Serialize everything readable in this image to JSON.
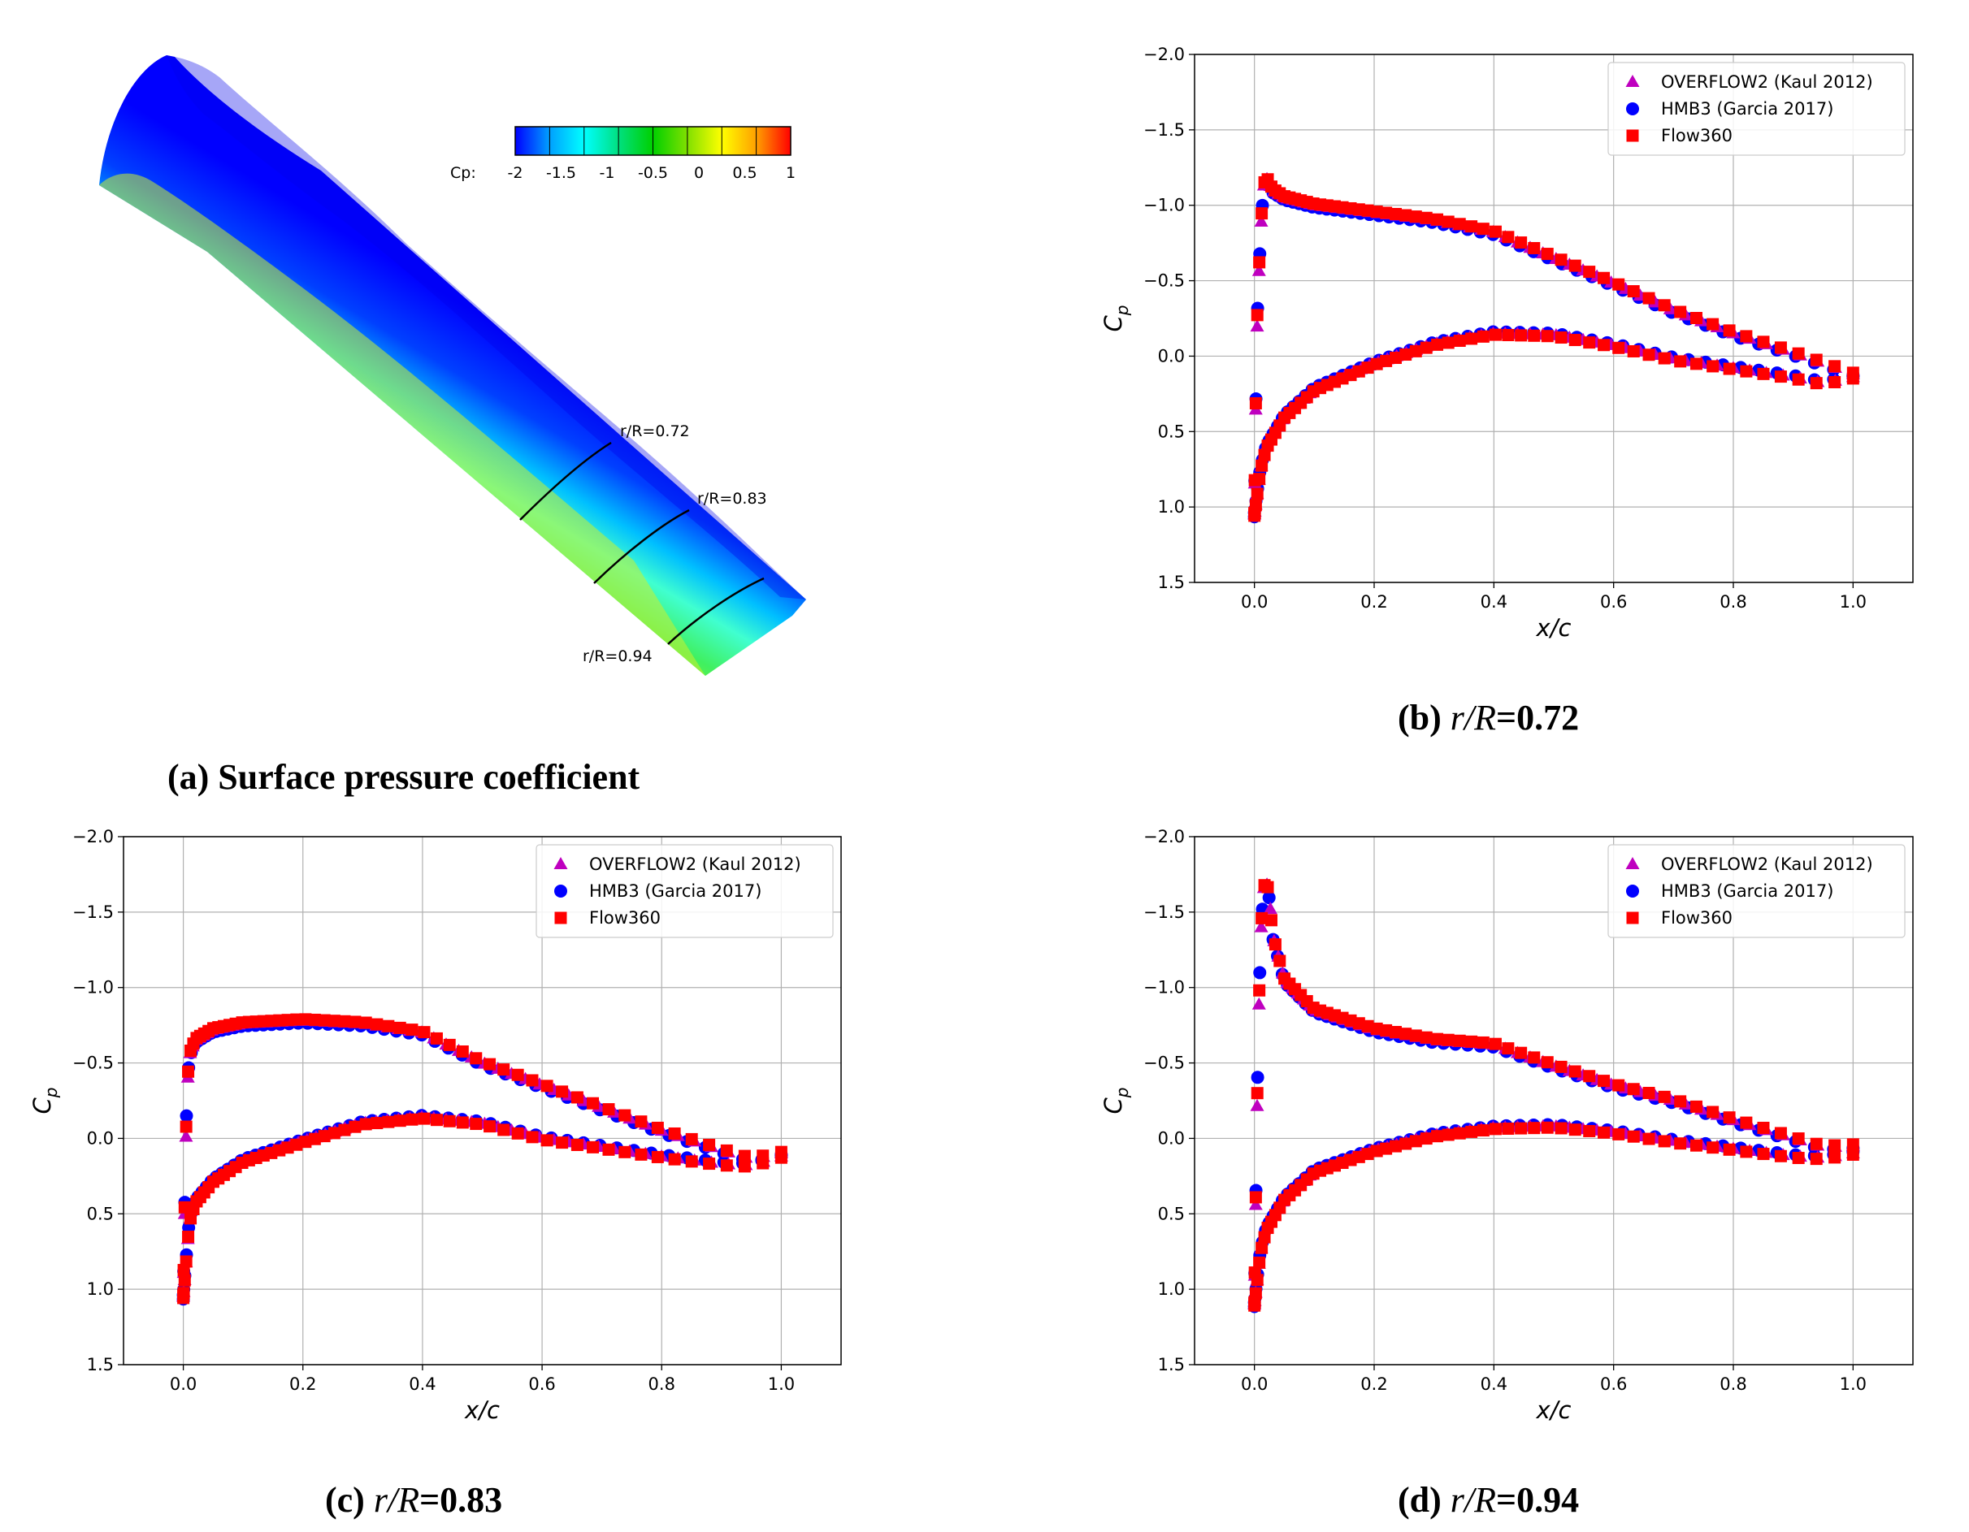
{
  "panel_a": {
    "caption": "(a) Surface pressure coefficient",
    "colorbar": {
      "label": "Cp:",
      "ticks": [
        "-2",
        "-1.5",
        "-1",
        "-0.5",
        "0",
        "0.5",
        "1"
      ],
      "colors": [
        "#0000ff",
        "#00a0ff",
        "#00ffff",
        "#00e080",
        "#00d000",
        "#80e000",
        "#ffff00",
        "#ffa000",
        "#ff0000"
      ]
    },
    "sections": [
      "r/R=0.72",
      "r/R=0.83",
      "r/R=0.94"
    ]
  },
  "legend": {
    "overflow": "OVERFLOW2 (Kaul 2012)",
    "hmb3": "HMB3 (Garcia 2017)",
    "flow360": "Flow360"
  },
  "series_colors": {
    "overflow": "#bf00bf",
    "hmb3": "#0000ff",
    "flow360": "#ff0000"
  },
  "chart_data": [
    {
      "type": "scatter",
      "id": "b",
      "caption_prefix": "(b) ",
      "caption_var": "r/R",
      "caption_value": "=0.72",
      "xlabel": "x/c",
      "ylabel": "Cp",
      "xlim": [
        -0.1,
        1.1
      ],
      "ylim": [
        1.5,
        -2.0
      ],
      "xticks": [
        "0.0",
        "0.2",
        "0.4",
        "0.6",
        "0.8",
        "1.0"
      ],
      "yticks": [
        "−2.0",
        "−1.5",
        "−1.0",
        "−0.5",
        "0.0",
        "0.5",
        "1.0",
        "1.5"
      ],
      "grid": true,
      "legend_position": "top-right",
      "upper_curve": [
        [
          0.0,
          1.05
        ],
        [
          0.002,
          0.4
        ],
        [
          0.005,
          -0.3
        ],
        [
          0.01,
          -0.8
        ],
        [
          0.015,
          -1.12
        ],
        [
          0.02,
          -1.18
        ],
        [
          0.03,
          -1.1
        ],
        [
          0.05,
          -1.05
        ],
        [
          0.1,
          -1.0
        ],
        [
          0.2,
          -0.95
        ],
        [
          0.3,
          -0.9
        ],
        [
          0.4,
          -0.82
        ],
        [
          0.5,
          -0.65
        ],
        [
          0.6,
          -0.48
        ],
        [
          0.7,
          -0.3
        ],
        [
          0.8,
          -0.15
        ],
        [
          0.9,
          -0.02
        ],
        [
          0.95,
          0.05
        ],
        [
          1.0,
          0.12
        ]
      ],
      "lower_curve": [
        [
          0.0,
          1.05
        ],
        [
          0.01,
          0.75
        ],
        [
          0.02,
          0.6
        ],
        [
          0.05,
          0.4
        ],
        [
          0.1,
          0.22
        ],
        [
          0.2,
          0.05
        ],
        [
          0.3,
          -0.08
        ],
        [
          0.4,
          -0.15
        ],
        [
          0.5,
          -0.14
        ],
        [
          0.6,
          -0.07
        ],
        [
          0.7,
          0.02
        ],
        [
          0.8,
          0.08
        ],
        [
          0.9,
          0.14
        ],
        [
          0.95,
          0.18
        ],
        [
          1.0,
          0.14
        ]
      ]
    },
    {
      "type": "scatter",
      "id": "c",
      "caption_prefix": "(c) ",
      "caption_var": "r/R",
      "caption_value": "=0.83",
      "xlabel": "x/c",
      "ylabel": "Cp",
      "xlim": [
        -0.1,
        1.1
      ],
      "ylim": [
        1.5,
        -2.0
      ],
      "xticks": [
        "0.0",
        "0.2",
        "0.4",
        "0.6",
        "0.8",
        "1.0"
      ],
      "yticks": [
        "−2.0",
        "−1.5",
        "−1.0",
        "−0.5",
        "0.0",
        "0.5",
        "1.0",
        "1.5"
      ],
      "grid": true,
      "legend_position": "top-right",
      "upper_curve": [
        [
          0.0,
          1.05
        ],
        [
          0.003,
          0.3
        ],
        [
          0.006,
          -0.3
        ],
        [
          0.01,
          -0.55
        ],
        [
          0.02,
          -0.65
        ],
        [
          0.05,
          -0.72
        ],
        [
          0.1,
          -0.76
        ],
        [
          0.2,
          -0.78
        ],
        [
          0.3,
          -0.76
        ],
        [
          0.4,
          -0.7
        ],
        [
          0.45,
          -0.6
        ],
        [
          0.5,
          -0.5
        ],
        [
          0.6,
          -0.35
        ],
        [
          0.7,
          -0.2
        ],
        [
          0.8,
          -0.05
        ],
        [
          0.9,
          0.08
        ],
        [
          0.95,
          0.14
        ],
        [
          1.0,
          0.1
        ]
      ],
      "lower_curve": [
        [
          0.0,
          1.05
        ],
        [
          0.01,
          0.55
        ],
        [
          0.02,
          0.42
        ],
        [
          0.05,
          0.28
        ],
        [
          0.1,
          0.15
        ],
        [
          0.2,
          0.02
        ],
        [
          0.3,
          -0.1
        ],
        [
          0.4,
          -0.14
        ],
        [
          0.5,
          -0.1
        ],
        [
          0.6,
          0.0
        ],
        [
          0.7,
          0.06
        ],
        [
          0.8,
          0.12
        ],
        [
          0.9,
          0.17
        ],
        [
          0.95,
          0.18
        ],
        [
          1.0,
          0.12
        ]
      ]
    },
    {
      "type": "scatter",
      "id": "d",
      "caption_prefix": "(d) ",
      "caption_var": "r/R",
      "caption_value": "=0.94",
      "xlabel": "x/c",
      "ylabel": "Cp",
      "xlim": [
        -0.1,
        1.1
      ],
      "ylim": [
        1.5,
        -2.0
      ],
      "xticks": [
        "0.0",
        "0.2",
        "0.4",
        "0.6",
        "0.8",
        "1.0"
      ],
      "yticks": [
        "−2.0",
        "−1.5",
        "−1.0",
        "−0.5",
        "0.0",
        "0.5",
        "1.0",
        "1.5"
      ],
      "grid": true,
      "legend_position": "top-right",
      "upper_curve": [
        [
          0.0,
          1.1
        ],
        [
          0.003,
          0.2
        ],
        [
          0.006,
          -0.6
        ],
        [
          0.01,
          -1.3
        ],
        [
          0.015,
          -1.65
        ],
        [
          0.02,
          -1.7
        ],
        [
          0.025,
          -1.6
        ],
        [
          0.03,
          -1.35
        ],
        [
          0.05,
          -1.05
        ],
        [
          0.1,
          -0.85
        ],
        [
          0.2,
          -0.72
        ],
        [
          0.3,
          -0.65
        ],
        [
          0.4,
          -0.62
        ],
        [
          0.5,
          -0.48
        ],
        [
          0.6,
          -0.35
        ],
        [
          0.7,
          -0.25
        ],
        [
          0.8,
          -0.12
        ],
        [
          0.9,
          0.0
        ],
        [
          0.95,
          0.06
        ],
        [
          1.0,
          0.05
        ]
      ],
      "lower_curve": [
        [
          0.0,
          1.1
        ],
        [
          0.01,
          0.75
        ],
        [
          0.02,
          0.6
        ],
        [
          0.05,
          0.4
        ],
        [
          0.1,
          0.22
        ],
        [
          0.2,
          0.08
        ],
        [
          0.3,
          -0.02
        ],
        [
          0.4,
          -0.07
        ],
        [
          0.5,
          -0.08
        ],
        [
          0.6,
          -0.04
        ],
        [
          0.7,
          0.02
        ],
        [
          0.8,
          0.07
        ],
        [
          0.9,
          0.12
        ],
        [
          0.95,
          0.13
        ],
        [
          1.0,
          0.1
        ]
      ]
    }
  ]
}
